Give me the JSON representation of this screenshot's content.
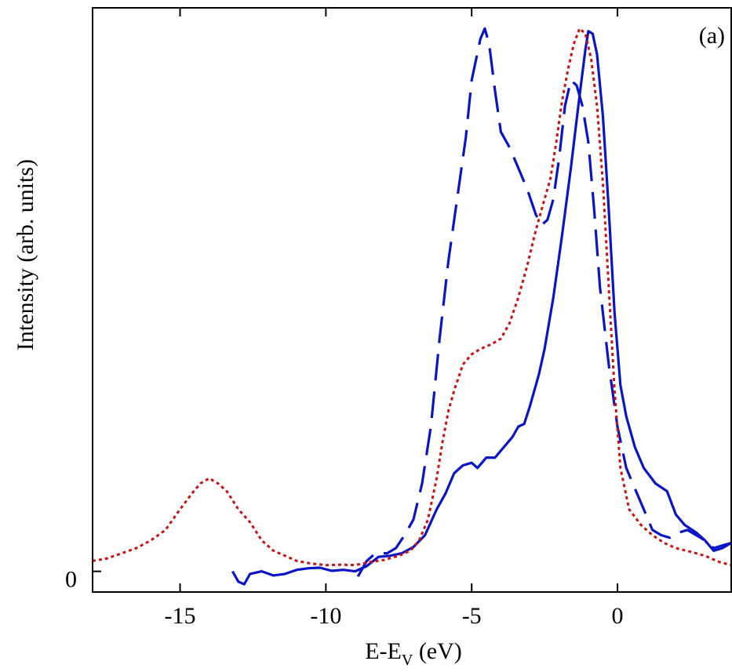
{
  "chart_data": {
    "type": "line",
    "title": "",
    "annotation": "(a)",
    "xlabel_main": "E-E",
    "xlabel_sub": "V",
    "xlabel_unit": " (eV)",
    "ylabel": "Intensity (arb. units)",
    "xlim": [
      -18,
      3.9
    ],
    "ylim": [
      -0.04,
      1.09
    ],
    "x_ticks": [
      -15,
      -10,
      -5,
      0
    ],
    "x_tick_labels": [
      "-15",
      "-10",
      "-5",
      "0"
    ],
    "y_ticks": [
      0
    ],
    "y_tick_labels": [
      "0"
    ],
    "grid": false,
    "series": [
      {
        "style": "solid",
        "color": "#0a14c8",
        "points": [
          [
            -13.2,
            0.0
          ],
          [
            -13.0,
            -0.02
          ],
          [
            -12.8,
            -0.025
          ],
          [
            -12.6,
            -0.005
          ],
          [
            -12.2,
            0.0
          ],
          [
            -11.8,
            -0.008
          ],
          [
            -11.4,
            -0.005
          ],
          [
            -11.0,
            0.003
          ],
          [
            -10.6,
            0.006
          ],
          [
            -10.2,
            0.007
          ],
          [
            -9.8,
            0.001
          ],
          [
            -9.4,
            0.003
          ],
          [
            -9.0,
            0.0
          ],
          [
            -8.6,
            0.01
          ],
          [
            -8.2,
            0.028
          ],
          [
            -7.8,
            0.03
          ],
          [
            -7.4,
            0.035
          ],
          [
            -7.0,
            0.047
          ],
          [
            -6.6,
            0.07
          ],
          [
            -6.2,
            0.12
          ],
          [
            -5.9,
            0.15
          ],
          [
            -5.6,
            0.19
          ],
          [
            -5.3,
            0.205
          ],
          [
            -5.0,
            0.21
          ],
          [
            -4.8,
            0.2
          ],
          [
            -4.5,
            0.22
          ],
          [
            -4.2,
            0.22
          ],
          [
            -3.9,
            0.24
          ],
          [
            -3.6,
            0.26
          ],
          [
            -3.4,
            0.28
          ],
          [
            -3.2,
            0.285
          ],
          [
            -3.0,
            0.32
          ],
          [
            -2.7,
            0.38
          ],
          [
            -2.5,
            0.43
          ],
          [
            -2.2,
            0.53
          ],
          [
            -1.9,
            0.65
          ],
          [
            -1.6,
            0.78
          ],
          [
            -1.3,
            0.92
          ],
          [
            -1.1,
            1.01
          ],
          [
            -1.0,
            1.045
          ],
          [
            -0.85,
            1.04
          ],
          [
            -0.7,
            1.0
          ],
          [
            -0.5,
            0.88
          ],
          [
            -0.3,
            0.7
          ],
          [
            -0.1,
            0.5
          ],
          [
            0.1,
            0.36
          ],
          [
            0.3,
            0.3
          ],
          [
            0.6,
            0.24
          ],
          [
            0.9,
            0.2
          ],
          [
            1.3,
            0.17
          ],
          [
            1.7,
            0.155
          ],
          [
            2.0,
            0.11
          ],
          [
            2.3,
            0.09
          ],
          [
            2.7,
            0.075
          ],
          [
            3.0,
            0.06
          ],
          [
            3.3,
            0.04
          ],
          [
            3.6,
            0.045
          ],
          [
            3.9,
            0.055
          ]
        ]
      },
      {
        "style": "dashed",
        "color": "#0a14c8",
        "points": [
          [
            -8.9,
            -0.01
          ],
          [
            -8.6,
            0.02
          ],
          [
            -8.3,
            0.035
          ],
          [
            -7.9,
            0.035
          ],
          [
            -7.6,
            0.045
          ],
          [
            -7.3,
            0.07
          ],
          [
            -7.0,
            0.1
          ],
          [
            -6.7,
            0.17
          ],
          [
            -6.4,
            0.28
          ],
          [
            -6.1,
            0.45
          ],
          [
            -5.8,
            0.6
          ],
          [
            -5.5,
            0.72
          ],
          [
            -5.2,
            0.84
          ],
          [
            -5.0,
            0.95
          ],
          [
            -4.7,
            1.03
          ],
          [
            -4.55,
            1.05
          ],
          [
            -4.4,
            1.02
          ],
          [
            -4.2,
            0.93
          ],
          [
            -4.0,
            0.85
          ],
          [
            -3.7,
            0.82
          ],
          [
            -3.4,
            0.78
          ],
          [
            -3.1,
            0.74
          ],
          [
            -2.8,
            0.69
          ],
          [
            -2.6,
            0.67
          ],
          [
            -2.4,
            0.68
          ],
          [
            -2.2,
            0.72
          ],
          [
            -2.0,
            0.8
          ],
          [
            -1.8,
            0.9
          ],
          [
            -1.6,
            0.95
          ],
          [
            -1.4,
            0.94
          ],
          [
            -1.2,
            0.9
          ],
          [
            -1.0,
            0.83
          ],
          [
            -0.8,
            0.7
          ],
          [
            -0.6,
            0.55
          ],
          [
            -0.3,
            0.4
          ],
          [
            0.0,
            0.28
          ],
          [
            0.3,
            0.2
          ],
          [
            0.6,
            0.16
          ],
          [
            0.9,
            0.12
          ],
          [
            1.2,
            0.08
          ],
          [
            1.5,
            0.07
          ],
          [
            1.8,
            0.065
          ],
          [
            2.1,
            0.075
          ],
          [
            2.4,
            0.08
          ],
          [
            2.7,
            0.07
          ],
          [
            3.0,
            0.06
          ],
          [
            3.3,
            0.045
          ],
          [
            3.6,
            0.05
          ],
          [
            3.9,
            0.055
          ]
        ]
      },
      {
        "style": "dotted",
        "color": "#cc1111",
        "points": [
          [
            -18.0,
            0.02
          ],
          [
            -17.5,
            0.025
          ],
          [
            -17.0,
            0.035
          ],
          [
            -16.5,
            0.045
          ],
          [
            -16.0,
            0.06
          ],
          [
            -15.5,
            0.08
          ],
          [
            -15.0,
            0.12
          ],
          [
            -14.6,
            0.15
          ],
          [
            -14.3,
            0.17
          ],
          [
            -14.0,
            0.18
          ],
          [
            -13.7,
            0.17
          ],
          [
            -13.4,
            0.155
          ],
          [
            -13.0,
            0.12
          ],
          [
            -12.6,
            0.095
          ],
          [
            -12.2,
            0.06
          ],
          [
            -11.8,
            0.04
          ],
          [
            -11.4,
            0.03
          ],
          [
            -11.0,
            0.02
          ],
          [
            -10.5,
            0.015
          ],
          [
            -10.0,
            0.012
          ],
          [
            -9.5,
            0.013
          ],
          [
            -9.0,
            0.012
          ],
          [
            -8.5,
            0.018
          ],
          [
            -8.0,
            0.022
          ],
          [
            -7.5,
            0.03
          ],
          [
            -7.1,
            0.04
          ],
          [
            -6.8,
            0.06
          ],
          [
            -6.5,
            0.1
          ],
          [
            -6.2,
            0.18
          ],
          [
            -6.0,
            0.25
          ],
          [
            -5.8,
            0.31
          ],
          [
            -5.6,
            0.35
          ],
          [
            -5.3,
            0.4
          ],
          [
            -5.0,
            0.42
          ],
          [
            -4.7,
            0.43
          ],
          [
            -4.3,
            0.44
          ],
          [
            -4.0,
            0.45
          ],
          [
            -3.7,
            0.48
          ],
          [
            -3.4,
            0.53
          ],
          [
            -3.1,
            0.59
          ],
          [
            -2.8,
            0.66
          ],
          [
            -2.5,
            0.72
          ],
          [
            -2.3,
            0.76
          ],
          [
            -2.1,
            0.83
          ],
          [
            -1.9,
            0.91
          ],
          [
            -1.7,
            0.97
          ],
          [
            -1.5,
            1.02
          ],
          [
            -1.3,
            1.05
          ],
          [
            -1.1,
            1.04
          ],
          [
            -0.9,
            0.99
          ],
          [
            -0.7,
            0.9
          ],
          [
            -0.5,
            0.75
          ],
          [
            -0.3,
            0.55
          ],
          [
            -0.1,
            0.35
          ],
          [
            0.1,
            0.2
          ],
          [
            0.4,
            0.12
          ],
          [
            0.8,
            0.09
          ],
          [
            1.2,
            0.07
          ],
          [
            1.6,
            0.055
          ],
          [
            2.0,
            0.045
          ],
          [
            2.5,
            0.038
          ],
          [
            3.0,
            0.03
          ],
          [
            3.5,
            0.018
          ],
          [
            3.9,
            0.012
          ]
        ]
      }
    ]
  }
}
